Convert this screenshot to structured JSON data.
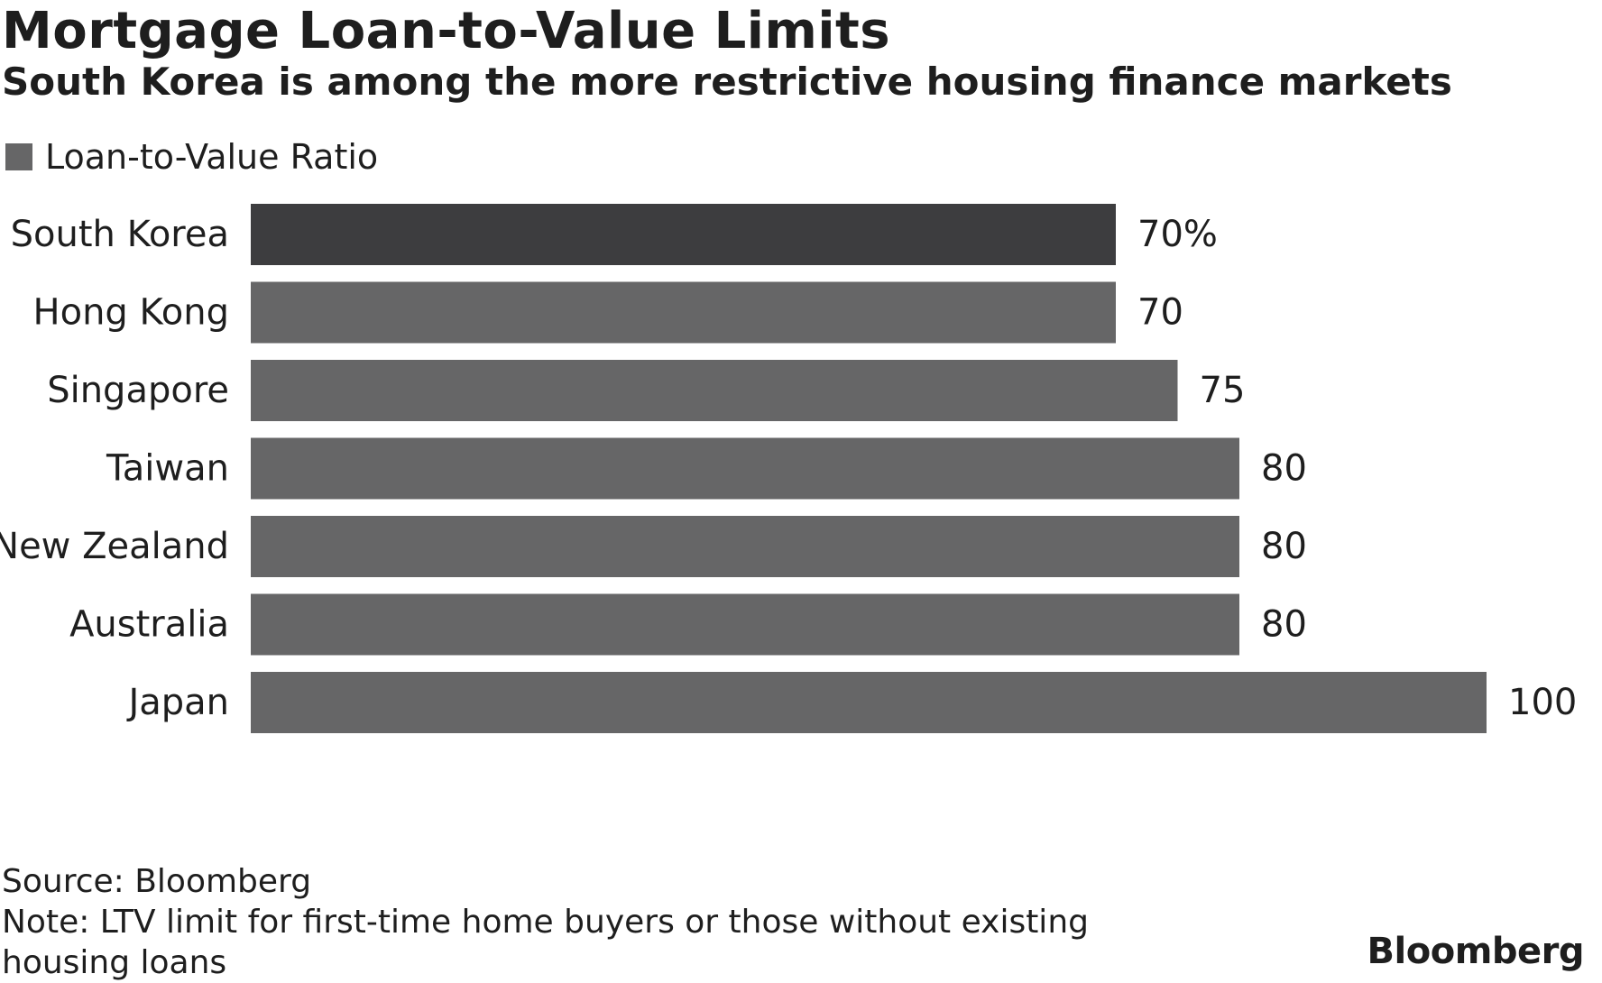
{
  "chart_data": {
    "type": "bar",
    "orientation": "horizontal",
    "title": "Mortgage Loan-to-Value Limits",
    "subtitle": "South Korea is among the more restrictive housing finance markets",
    "legend": [
      {
        "name": "Loan-to-Value Ratio",
        "color": "#666667"
      }
    ],
    "categories": [
      "South Korea",
      "Hong Kong",
      "Singapore",
      "Taiwan",
      "New Zealand",
      "Australia",
      "Japan"
    ],
    "values": [
      70,
      70,
      75,
      80,
      80,
      80,
      100
    ],
    "value_labels": [
      "70%",
      "70",
      "75",
      "80",
      "80",
      "80",
      "100"
    ],
    "highlight": {
      "category": "South Korea",
      "color": "#3d3d3f"
    },
    "bar_color": "#666667",
    "xlim": [
      0,
      100
    ],
    "grid": false,
    "xlabel": "",
    "ylabel": ""
  },
  "footer": {
    "source": "Source: Bloomberg",
    "note": "Note: LTV limit for first-time home buyers or those without existing housing loans"
  },
  "brand": "Bloomberg"
}
